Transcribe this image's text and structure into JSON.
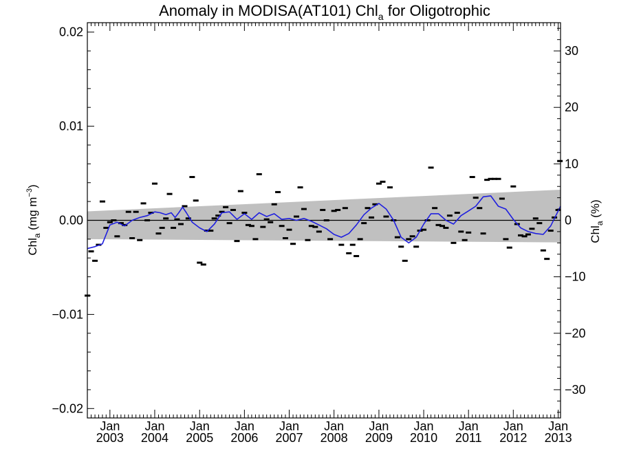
{
  "chart_data": {
    "type": "line",
    "title": {
      "main": "Anomaly in MODISA(AT101) Chl",
      "sub": "a",
      "rest": " for Oligotrophic"
    },
    "ylabel_left": {
      "main": "Chl",
      "sub": "a",
      "units_pre": " (mg m",
      "units_sup": "−3",
      "units_post": ")"
    },
    "ylabel_right": {
      "main": "Chl",
      "sub": "a",
      "rest": " (%)"
    },
    "x_range": [
      "2002-07-01",
      "2013-01-20"
    ],
    "ylim_left": [
      -0.021,
      0.021
    ],
    "ylim_right": [
      -35,
      35
    ],
    "left_ticks": [
      {
        "value": 0.02,
        "label": "0.02"
      },
      {
        "value": 0.01,
        "label": "0.01"
      },
      {
        "value": 0.0,
        "label": "0.00"
      },
      {
        "value": -0.01,
        "label": "−0.01"
      },
      {
        "value": -0.02,
        "label": "−0.02"
      }
    ],
    "right_ticks": [
      {
        "value": 30,
        "label": "30"
      },
      {
        "value": 20,
        "label": "20"
      },
      {
        "value": 10,
        "label": "10"
      },
      {
        "value": 0,
        "label": "0"
      },
      {
        "value": -10,
        "label": "−10"
      },
      {
        "value": -20,
        "label": "−20"
      },
      {
        "value": -30,
        "label": "−30"
      }
    ],
    "x_ticks": [
      {
        "date": "2003-01-01",
        "label1": "Jan",
        "label2": "2003"
      },
      {
        "date": "2004-01-01",
        "label1": "Jan",
        "label2": "2004"
      },
      {
        "date": "2005-01-01",
        "label1": "Jan",
        "label2": "2005"
      },
      {
        "date": "2006-01-01",
        "label1": "Jan",
        "label2": "2006"
      },
      {
        "date": "2007-01-01",
        "label1": "Jan",
        "label2": "2007"
      },
      {
        "date": "2008-01-01",
        "label1": "Jan",
        "label2": "2008"
      },
      {
        "date": "2009-01-01",
        "label1": "Jan",
        "label2": "2009"
      },
      {
        "date": "2010-01-01",
        "label1": "Jan",
        "label2": "2010"
      },
      {
        "date": "2011-01-01",
        "label1": "Jan",
        "label2": "2011"
      },
      {
        "date": "2012-01-01",
        "label1": "Jan",
        "label2": "2012"
      },
      {
        "date": "2013-01-01",
        "label1": "Jan",
        "label2": "2013"
      }
    ],
    "confidence_band": {
      "start_date": "2002-07-01",
      "end_date": "2013-01-20",
      "upper_start": 0.00095,
      "upper_end": 0.00325,
      "lower_start": -0.002,
      "lower_end": -0.00235,
      "color": "#c0c0c0"
    },
    "zero_line": 0.0,
    "series": [
      {
        "type": "markers",
        "color": "#000000",
        "points": [
          [
            "2002-07-01",
            -0.008
          ],
          [
            "2002-08-01",
            -0.0033
          ],
          [
            "2002-09-01",
            -0.0043
          ],
          [
            "2002-10-01",
            -0.0026
          ],
          [
            "2002-11-01",
            0.002
          ],
          [
            "2002-12-01",
            -0.0008
          ],
          [
            "2003-01-01",
            -0.0002
          ],
          [
            "2003-02-01",
            0.0
          ],
          [
            "2003-03-01",
            -0.0017
          ],
          [
            "2003-04-01",
            -0.0003
          ],
          [
            "2003-05-01",
            -0.0005
          ],
          [
            "2003-06-01",
            0.0009
          ],
          [
            "2003-07-01",
            -0.0019
          ],
          [
            "2003-08-01",
            0.0009
          ],
          [
            "2003-09-01",
            -0.0021
          ],
          [
            "2003-10-01",
            0.0018
          ],
          [
            "2003-11-01",
            0.0
          ],
          [
            "2003-12-01",
            0.0008
          ],
          [
            "2004-01-01",
            0.0039
          ],
          [
            "2004-02-01",
            -0.0014
          ],
          [
            "2004-03-01",
            -0.0008
          ],
          [
            "2004-04-01",
            0.0002
          ],
          [
            "2004-05-01",
            0.0028
          ],
          [
            "2004-06-01",
            -0.0008
          ],
          [
            "2004-07-01",
            0.0001
          ],
          [
            "2004-08-01",
            -0.0004
          ],
          [
            "2004-09-01",
            0.0015
          ],
          [
            "2004-10-01",
            0.0002
          ],
          [
            "2004-11-01",
            0.0046
          ],
          [
            "2004-12-01",
            0.0021
          ],
          [
            "2005-01-01",
            -0.0045
          ],
          [
            "2005-02-01",
            -0.0047
          ],
          [
            "2005-03-01",
            -0.0011
          ],
          [
            "2005-04-01",
            -0.0011
          ],
          [
            "2005-05-01",
            0.0002
          ],
          [
            "2005-06-01",
            0.0005
          ],
          [
            "2005-07-01",
            0.0009
          ],
          [
            "2005-08-01",
            0.0014
          ],
          [
            "2005-09-01",
            -0.0003
          ],
          [
            "2005-10-01",
            0.0011
          ],
          [
            "2005-11-01",
            -0.0022
          ],
          [
            "2005-12-01",
            0.0031
          ],
          [
            "2006-01-01",
            0.0008
          ],
          [
            "2006-02-01",
            -0.0005
          ],
          [
            "2006-03-01",
            -0.0006
          ],
          [
            "2006-04-01",
            -0.002
          ],
          [
            "2006-05-01",
            0.0049
          ],
          [
            "2006-06-01",
            -0.0007
          ],
          [
            "2006-07-01",
            0.0001
          ],
          [
            "2006-08-01",
            -0.0002
          ],
          [
            "2006-09-01",
            0.0017
          ],
          [
            "2006-10-01",
            0.003
          ],
          [
            "2006-11-01",
            -0.0006
          ],
          [
            "2006-12-01",
            -0.0019
          ],
          [
            "2007-01-01",
            -0.001
          ],
          [
            "2007-02-01",
            -0.0025
          ],
          [
            "2007-03-01",
            0.0004
          ],
          [
            "2007-04-01",
            0.0035
          ],
          [
            "2007-05-01",
            0.0012
          ],
          [
            "2007-06-01",
            -0.0021
          ],
          [
            "2007-07-01",
            -0.0006
          ],
          [
            "2007-08-01",
            -0.0007
          ],
          [
            "2007-09-01",
            -0.0012
          ],
          [
            "2007-10-01",
            0.0011
          ],
          [
            "2007-11-01",
            0.0
          ],
          [
            "2007-12-01",
            -0.002
          ],
          [
            "2008-01-01",
            0.001
          ],
          [
            "2008-02-01",
            0.0011
          ],
          [
            "2008-03-01",
            -0.0026
          ],
          [
            "2008-04-01",
            0.0013
          ],
          [
            "2008-05-01",
            -0.0035
          ],
          [
            "2008-06-01",
            -0.0026
          ],
          [
            "2008-07-01",
            -0.0038
          ],
          [
            "2008-08-01",
            -0.002
          ],
          [
            "2008-09-01",
            -0.0003
          ],
          [
            "2008-10-01",
            0.0013
          ],
          [
            "2008-11-01",
            0.0003
          ],
          [
            "2008-12-01",
            0.0017
          ],
          [
            "2009-01-01",
            0.0039
          ],
          [
            "2009-02-01",
            0.0041
          ],
          [
            "2009-03-01",
            0.0004
          ],
          [
            "2009-04-01",
            0.0035
          ],
          [
            "2009-05-01",
            0.0
          ],
          [
            "2009-06-01",
            -0.0018
          ],
          [
            "2009-07-01",
            -0.0028
          ],
          [
            "2009-08-01",
            -0.0043
          ],
          [
            "2009-09-01",
            -0.002
          ],
          [
            "2009-10-01",
            -0.0017
          ],
          [
            "2009-11-01",
            -0.0028
          ],
          [
            "2009-12-01",
            -0.0011
          ],
          [
            "2010-01-01",
            -0.001
          ],
          [
            "2010-02-01",
            0.0
          ],
          [
            "2010-03-01",
            0.0056
          ],
          [
            "2010-04-01",
            0.0013
          ],
          [
            "2010-05-01",
            -0.0005
          ],
          [
            "2010-06-01",
            -0.0006
          ],
          [
            "2010-07-01",
            -0.0008
          ],
          [
            "2010-08-01",
            0.0005
          ],
          [
            "2010-09-01",
            -0.0024
          ],
          [
            "2010-10-01",
            0.0008
          ],
          [
            "2010-11-01",
            -0.0012
          ],
          [
            "2010-12-01",
            -0.0021
          ],
          [
            "2011-01-01",
            -0.0013
          ],
          [
            "2011-02-01",
            0.0046
          ],
          [
            "2011-03-01",
            0.0024
          ],
          [
            "2011-04-01",
            0.0013
          ],
          [
            "2011-05-01",
            -0.0014
          ],
          [
            "2011-06-01",
            0.0043
          ],
          [
            "2011-07-01",
            0.0044
          ],
          [
            "2011-08-01",
            0.0044
          ],
          [
            "2011-09-01",
            0.0044
          ],
          [
            "2011-10-01",
            0.0023
          ],
          [
            "2011-11-01",
            -0.002
          ],
          [
            "2011-12-01",
            -0.0029
          ],
          [
            "2012-01-01",
            0.0036
          ],
          [
            "2012-02-01",
            -0.0004
          ],
          [
            "2012-03-01",
            -0.0016
          ],
          [
            "2012-04-01",
            -0.0017
          ],
          [
            "2012-05-01",
            -0.0015
          ],
          [
            "2012-06-01",
            -0.0009
          ],
          [
            "2012-07-01",
            0.0002
          ],
          [
            "2012-08-01",
            -0.0003
          ],
          [
            "2012-09-01",
            -0.0032
          ],
          [
            "2012-10-01",
            -0.0041
          ],
          [
            "2012-11-01",
            -0.0011
          ],
          [
            "2012-12-01",
            0.0003
          ],
          [
            "2013-01-01",
            0.0011
          ],
          [
            "2013-01-15",
            0.0063
          ]
        ]
      },
      {
        "type": "line",
        "color": "#1f1fdf",
        "points": [
          [
            "2002-07-01",
            -0.003
          ],
          [
            "2002-09-01",
            -0.0028
          ],
          [
            "2002-11-01",
            -0.0025
          ],
          [
            "2003-01-01",
            -0.0005
          ],
          [
            "2003-03-01",
            -0.0002
          ],
          [
            "2003-05-01",
            -0.0006
          ],
          [
            "2003-07-01",
            0.0
          ],
          [
            "2003-09-01",
            0.0003
          ],
          [
            "2003-11-01",
            0.0005
          ],
          [
            "2004-01-01",
            0.0009
          ],
          [
            "2004-02-15",
            0.0008
          ],
          [
            "2004-04-01",
            0.0006
          ],
          [
            "2004-05-15",
            0.0008
          ],
          [
            "2004-06-15",
            0.0003
          ],
          [
            "2004-07-15",
            0.0008
          ],
          [
            "2004-08-15",
            0.0014
          ],
          [
            "2004-09-15",
            0.0008
          ],
          [
            "2004-11-01",
            -0.0002
          ],
          [
            "2005-01-01",
            -0.0008
          ],
          [
            "2005-03-01",
            -0.0012
          ],
          [
            "2005-05-01",
            -0.0004
          ],
          [
            "2005-07-01",
            0.0008
          ],
          [
            "2005-09-01",
            0.0009
          ],
          [
            "2005-11-01",
            0.0001
          ],
          [
            "2006-01-01",
            0.0007
          ],
          [
            "2006-03-01",
            0.0001
          ],
          [
            "2006-05-01",
            0.0008
          ],
          [
            "2006-07-01",
            0.0004
          ],
          [
            "2006-09-01",
            0.0007
          ],
          [
            "2006-11-01",
            0.0001
          ],
          [
            "2007-01-01",
            0.0002
          ],
          [
            "2007-03-01",
            0.0
          ],
          [
            "2007-05-01",
            0.0002
          ],
          [
            "2007-07-01",
            -0.0001
          ],
          [
            "2007-09-01",
            -0.0005
          ],
          [
            "2007-11-01",
            -0.0009
          ],
          [
            "2008-01-01",
            -0.0015
          ],
          [
            "2008-03-01",
            -0.0018
          ],
          [
            "2008-05-01",
            -0.0014
          ],
          [
            "2008-07-01",
            -0.0005
          ],
          [
            "2008-09-01",
            0.0006
          ],
          [
            "2008-11-01",
            0.0013
          ],
          [
            "2009-01-01",
            0.0018
          ],
          [
            "2009-03-01",
            0.0012
          ],
          [
            "2009-05-01",
            0.0
          ],
          [
            "2009-07-01",
            -0.0018
          ],
          [
            "2009-09-01",
            -0.0024
          ],
          [
            "2009-11-01",
            -0.0018
          ],
          [
            "2010-01-01",
            -0.0004
          ],
          [
            "2010-03-01",
            0.0007
          ],
          [
            "2010-05-01",
            0.0007
          ],
          [
            "2010-07-01",
            0.0
          ],
          [
            "2010-09-01",
            -0.0004
          ],
          [
            "2010-11-01",
            0.0005
          ],
          [
            "2011-01-01",
            0.001
          ],
          [
            "2011-03-01",
            0.0015
          ],
          [
            "2011-05-01",
            0.0025
          ],
          [
            "2011-07-01",
            0.0026
          ],
          [
            "2011-09-01",
            0.0015
          ],
          [
            "2011-11-01",
            0.0012
          ],
          [
            "2012-01-01",
            0.0001
          ],
          [
            "2012-03-01",
            -0.0008
          ],
          [
            "2012-05-01",
            -0.0012
          ],
          [
            "2012-07-01",
            -0.0014
          ],
          [
            "2012-09-01",
            -0.0015
          ],
          [
            "2012-11-01",
            -0.0006
          ],
          [
            "2013-01-20",
            0.0015
          ]
        ]
      }
    ]
  }
}
